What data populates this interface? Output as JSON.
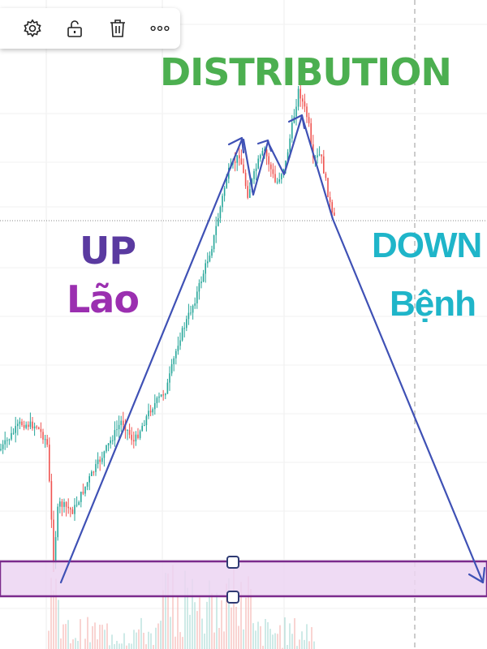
{
  "toolbar": {
    "buttons": [
      {
        "name": "settings",
        "icon": "gear-icon"
      },
      {
        "name": "lock",
        "icon": "unlock-icon"
      },
      {
        "name": "delete",
        "icon": "trash-icon"
      },
      {
        "name": "more",
        "icon": "more-icon"
      }
    ]
  },
  "chart_data": {
    "type": "candlestick",
    "title": "",
    "annotations": {
      "distribution": "DISTRIBUTION",
      "up": "UP",
      "up_sub": "Lão",
      "down": "DOWN",
      "down_sub": "Bệnh"
    },
    "grid": true,
    "colors": {
      "distribution": "#4caf50",
      "up": "#5a3aa0",
      "up_sub": "#9b2fb0",
      "down": "#1fb5c9",
      "trend_line": "#3f51b5",
      "zone_fill": "#ecd5f2",
      "zone_border": "#7b2a8c",
      "bull": "#26a69a",
      "bear": "#ef5350"
    }
  }
}
